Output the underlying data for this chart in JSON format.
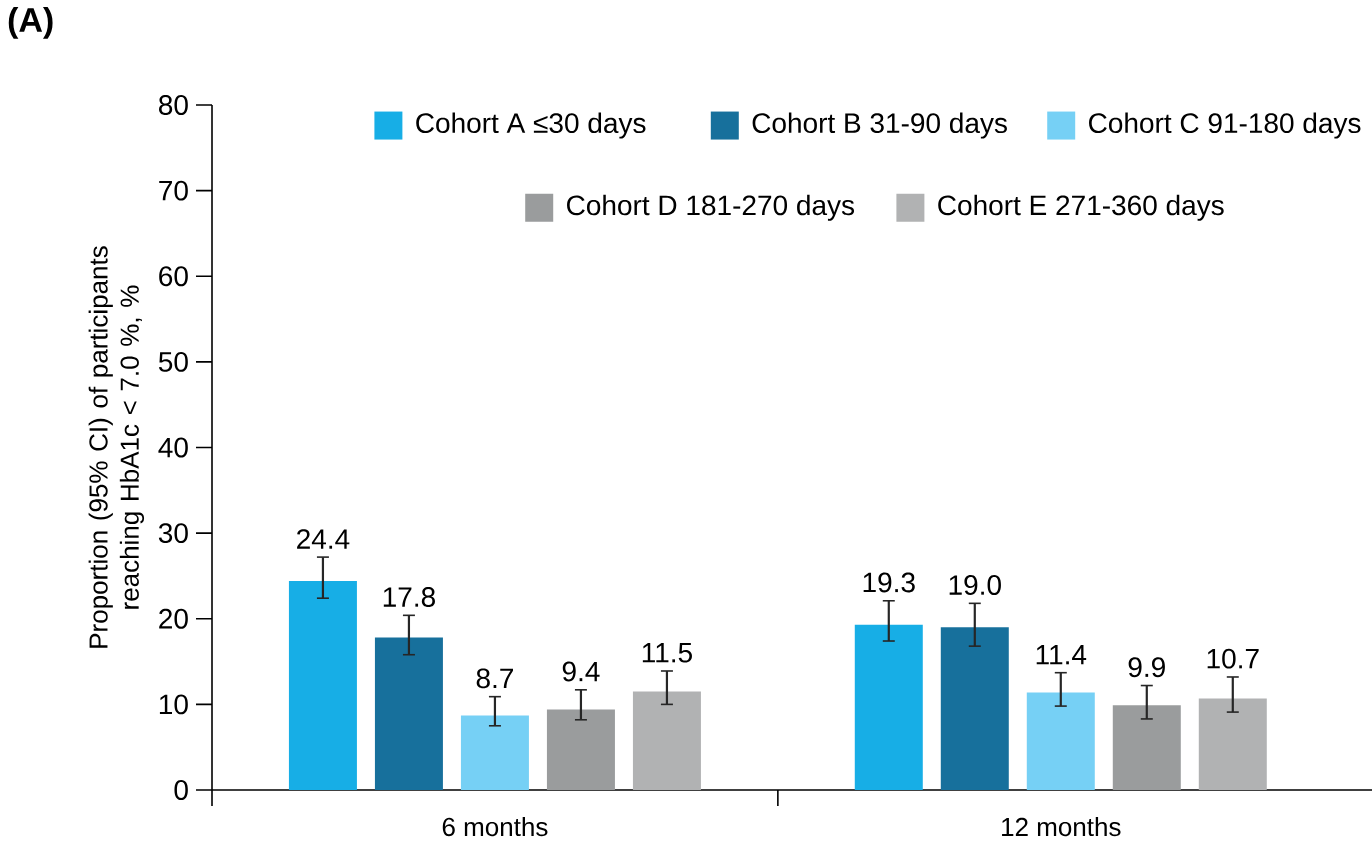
{
  "chart_data": {
    "type": "bar",
    "annotations": [
      "(A)"
    ],
    "ylabel": "Proportion (95% CI) of participants reaching HbA1c < 7.0 %, %",
    "categories": [
      "6 months",
      "12 months"
    ],
    "series": [
      {
        "name": "Cohort A ≤30 days",
        "color": "#17aee6",
        "values": [
          24.4,
          19.3
        ],
        "value_labels": [
          "24.4",
          "19.3"
        ],
        "errors": [
          [
            22.4,
            27.2
          ],
          [
            17.4,
            22.1
          ]
        ]
      },
      {
        "name": "Cohort B 31-90 days",
        "color": "#17709c",
        "values": [
          17.8,
          19.0
        ],
        "value_labels": [
          "17.8",
          "19.0"
        ],
        "errors": [
          [
            15.8,
            20.4
          ],
          [
            16.8,
            21.8
          ]
        ]
      },
      {
        "name": "Cohort C 91-180 days",
        "color": "#76d0f5",
        "values": [
          8.7,
          11.4
        ],
        "value_labels": [
          "8.7",
          "11.4"
        ],
        "errors": [
          [
            7.5,
            10.9
          ],
          [
            9.8,
            13.7
          ]
        ]
      },
      {
        "name": "Cohort D 181-270 days",
        "color": "#9a9c9d",
        "values": [
          9.4,
          9.9
        ],
        "value_labels": [
          "9.4",
          "9.9"
        ],
        "errors": [
          [
            8.2,
            11.7
          ],
          [
            8.3,
            12.2
          ]
        ]
      },
      {
        "name": "Cohort E 271-360 days",
        "color": "#b1b2b3",
        "values": [
          11.5,
          10.7
        ],
        "value_labels": [
          "11.5",
          "10.7"
        ],
        "errors": [
          [
            10.0,
            13.9
          ],
          [
            9.1,
            13.2
          ]
        ]
      }
    ],
    "ylim": [
      0,
      80
    ],
    "yticks": [
      0,
      10,
      20,
      30,
      40,
      50,
      60,
      70,
      80
    ],
    "legend": "top"
  }
}
